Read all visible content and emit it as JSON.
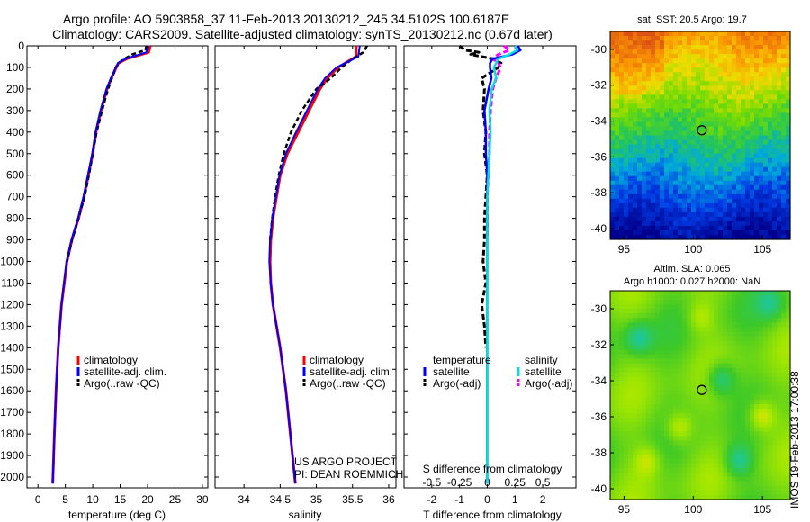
{
  "title_line1": "Argo profile: AO 5903858_37 11-Feb-2013 20130212_245 34.5102S 100.6187E",
  "title_line2": "Climatology: CARS2009. Satellite-adjusted climatology: synTS_20130212.nc (0.67d later)",
  "footer_timestamp": "IMOS 19-Feb-2013 17:00:38",
  "project_note": [
    "US ARGO PROJECT",
    "PI: DEAN ROEMMICH"
  ],
  "colors": {
    "climatology": "#ff0000",
    "satellite": "#0000ff",
    "argo": "#000000",
    "t_sat": "#0000ff",
    "s_sat": "#00e0e0",
    "s_argo": "#ff00ff"
  },
  "legends": {
    "profile": [
      "climatology",
      "satellite-adj. clim.",
      "Argo(..raw -QC)"
    ],
    "diff_headers": [
      "temperature",
      "salinity"
    ],
    "diff_temperature": [
      "satellite",
      "Argo(-adj)"
    ],
    "diff_salinity": [
      "satellite",
      "Argo(-adj)"
    ]
  },
  "maps": [
    {
      "title": [
        "sat. SST: 20.5 Argo: 19.7"
      ],
      "xticks": [
        "95",
        "100",
        "105"
      ],
      "yticks": [
        "-30",
        "-32",
        "-34",
        "-36",
        "-38",
        "-40"
      ],
      "marker": {
        "lon": 100.62,
        "lat": -34.51
      }
    },
    {
      "title": [
        "Altim. SLA: 0.065",
        "Argo h1000: 0.027 h2000: NaN"
      ],
      "xticks": [
        "95",
        "100",
        "105"
      ],
      "yticks": [
        "-30",
        "-32",
        "-34",
        "-36",
        "-38",
        "-40"
      ],
      "marker": {
        "lon": 100.62,
        "lat": -34.51
      }
    }
  ],
  "chart_data": [
    {
      "type": "line",
      "xlabel": "temperature (deg C)",
      "xlim": [
        -2,
        31
      ],
      "xticks": [
        0,
        5,
        10,
        15,
        20,
        25,
        30
      ],
      "ylim": [
        2050,
        0
      ],
      "yticks": [
        0,
        100,
        200,
        300,
        400,
        500,
        600,
        700,
        800,
        900,
        1000,
        1100,
        1200,
        1300,
        1400,
        1500,
        1600,
        1700,
        1800,
        1900,
        2000
      ],
      "series": [
        {
          "name": "climatology",
          "depth": [
            0,
            30,
            60,
            80,
            100,
            150,
            200,
            300,
            400,
            500,
            600,
            700,
            800,
            900,
            1000,
            1200,
            1400,
            1600,
            1800,
            2030
          ],
          "values": [
            20.5,
            20.2,
            16.2,
            14.7,
            14.3,
            13.4,
            12.6,
            11.5,
            10.6,
            10.0,
            9.2,
            8.4,
            7.4,
            6.2,
            5.3,
            4.3,
            3.7,
            3.3,
            3.0,
            2.7
          ]
        },
        {
          "name": "satellite-adj. clim.",
          "depth": [
            0,
            30,
            60,
            80,
            100,
            150,
            200,
            300,
            400,
            500,
            600,
            700,
            800,
            900,
            1000,
            1200,
            1400,
            1600,
            1800,
            2030
          ],
          "values": [
            20.2,
            19.8,
            16.0,
            14.6,
            14.2,
            13.3,
            12.5,
            11.4,
            10.5,
            9.9,
            9.1,
            8.3,
            7.3,
            6.1,
            5.2,
            4.3,
            3.7,
            3.3,
            3.0,
            2.7
          ]
        },
        {
          "name": "Argo(..raw -QC)",
          "depth": [
            0,
            20,
            40,
            60,
            80,
            100,
            150,
            200,
            300,
            400,
            500,
            600,
            700,
            800,
            900,
            1000
          ],
          "values": [
            19.8,
            19.6,
            17.2,
            15.8,
            14.7,
            14.2,
            13.5,
            12.8,
            11.7,
            10.7,
            10.0,
            9.3,
            8.5,
            7.4,
            6.2,
            5.3
          ]
        }
      ]
    },
    {
      "type": "line",
      "xlabel": "salinity",
      "xlim": [
        33.6,
        36.1
      ],
      "xticks": [
        34,
        34.5,
        35,
        35.5,
        36
      ],
      "ylim": [
        2050,
        0
      ],
      "series": [
        {
          "name": "climatology",
          "depth": [
            0,
            50,
            100,
            150,
            200,
            300,
            400,
            500,
            600,
            700,
            800,
            900,
            1000,
            1100,
            1200,
            1400,
            1600,
            1800,
            2030
          ],
          "values": [
            35.55,
            35.55,
            35.3,
            35.15,
            35.05,
            34.9,
            34.75,
            34.6,
            34.5,
            34.45,
            34.4,
            34.37,
            34.36,
            34.37,
            34.4,
            34.5,
            34.58,
            34.64,
            34.71
          ]
        },
        {
          "name": "satellite-adj. clim.",
          "depth": [
            0,
            50,
            100,
            150,
            200,
            300,
            400,
            500,
            600,
            700,
            800,
            900,
            1000,
            1100,
            1200,
            1400,
            1600,
            1800,
            2030
          ],
          "values": [
            35.6,
            35.58,
            35.28,
            35.12,
            35.02,
            34.87,
            34.72,
            34.58,
            34.49,
            34.44,
            34.39,
            34.36,
            34.35,
            34.37,
            34.4,
            34.5,
            34.58,
            34.64,
            34.71
          ]
        },
        {
          "name": "Argo(..raw -QC)",
          "depth": [
            0,
            30,
            60,
            100,
            150,
            200,
            300,
            400,
            500,
            600,
            700,
            800,
            900
          ],
          "values": [
            35.7,
            35.65,
            35.5,
            35.35,
            35.2,
            35.0,
            34.8,
            34.65,
            34.55,
            34.48,
            34.43,
            34.39,
            34.36
          ]
        }
      ]
    },
    {
      "type": "line",
      "xlabel": "T difference from climatology",
      "xlabel_top": "S difference from climatology",
      "xlim": [
        -3,
        3.2
      ],
      "xticks": [
        -2,
        -1,
        0,
        1,
        2
      ],
      "s_tick_labels": [
        "-0.5",
        "-0.25",
        "0",
        "0.25",
        "0.5"
      ],
      "ylim": [
        2050,
        0
      ],
      "series": [
        {
          "name": "temperature satellite",
          "depth": [
            0,
            20,
            40,
            60,
            80,
            100,
            150,
            200,
            300,
            400,
            500,
            600,
            700,
            800,
            1000,
            1500,
            2030
          ],
          "values": [
            1.1,
            1.2,
            0.9,
            0.2,
            0.1,
            0.1,
            0.15,
            0.05,
            -0.1,
            -0.05,
            -0.05,
            0.0,
            0.0,
            0.0,
            0.0,
            0.0,
            0.0
          ]
        },
        {
          "name": "temperature Argo(-adj)",
          "depth": [
            0,
            20,
            30,
            40,
            60,
            80,
            100,
            150,
            200,
            300,
            400,
            500,
            600,
            700,
            800,
            900,
            1000,
            1100,
            1200,
            1300,
            1400
          ],
          "values": [
            -1.0,
            -0.8,
            -0.3,
            -0.6,
            0.2,
            0.5,
            0.4,
            -0.2,
            -0.1,
            -0.15,
            -0.05,
            -0.1,
            0.0,
            -0.05,
            -0.1,
            -0.1,
            -0.15,
            -0.05,
            -0.2,
            -0.1,
            -0.05
          ]
        },
        {
          "name": "salinity satellite",
          "depth": [
            0,
            20,
            40,
            60,
            80,
            100,
            150,
            200,
            300,
            400,
            500,
            600,
            700,
            800,
            1000,
            1500,
            2030
          ],
          "values": [
            0.25,
            0.27,
            0.2,
            0.1,
            0.08,
            0.06,
            0.08,
            0.04,
            0.02,
            0.03,
            0.02,
            0.01,
            0.0,
            0.0,
            0.0,
            0.0,
            0.0
          ]
        },
        {
          "name": "salinity Argo(-adj)",
          "depth": [
            0,
            20,
            40,
            60,
            80,
            100,
            150,
            200,
            300,
            400,
            500,
            600,
            700,
            800,
            900
          ],
          "values": [
            0.15,
            0.2,
            0.1,
            0.05,
            0.1,
            0.12,
            0.08,
            0.05,
            0.03,
            0.02,
            0.02,
            0.01,
            0.0,
            0.0,
            0.0
          ]
        }
      ]
    }
  ]
}
